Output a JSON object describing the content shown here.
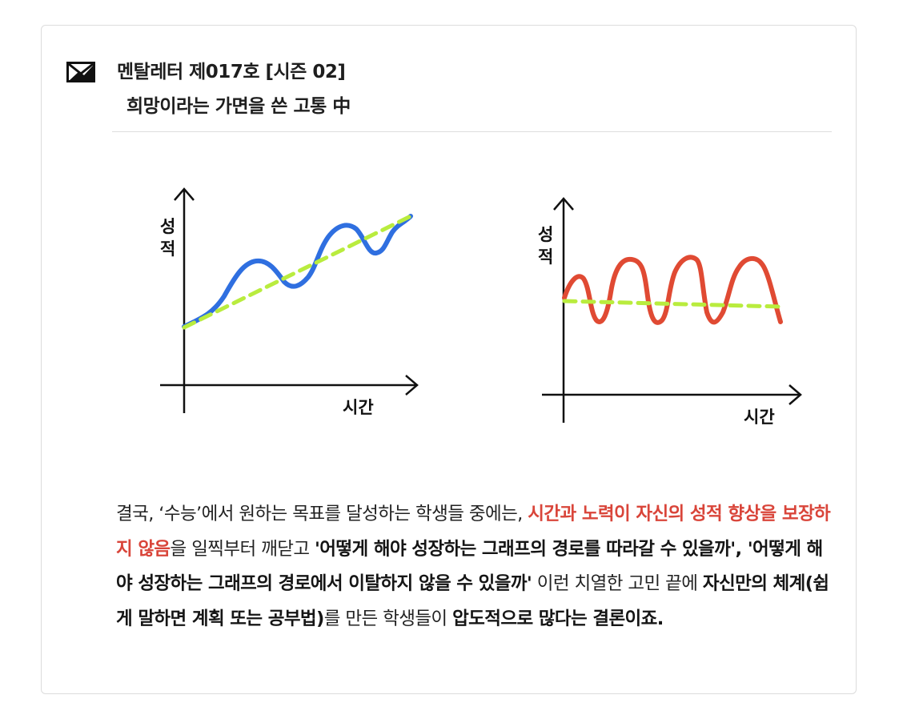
{
  "header": {
    "title_line1": "멘탈레터 제017호 [시즌 02]",
    "title_line2": "희망이라는 가면을 쓴 고통 中"
  },
  "charts": {
    "left": {
      "y_label": "성\n적",
      "x_label": "시간",
      "trend_color": "#b9ec3e",
      "curve_color": "#2f6fe0"
    },
    "right": {
      "y_label": "성\n적",
      "x_label": "시간",
      "trend_color": "#b9ec3e",
      "curve_color": "#e04a33"
    }
  },
  "body": {
    "segments": [
      {
        "text": "결국, ‘수능’에서 원하는 목표를 달성하는 학생들 중에는, ",
        "style": "normal"
      },
      {
        "text": "시간과 노력이 자신의 성적 향상을 보장하지 않음",
        "style": "highlight"
      },
      {
        "text": "을 일찍부터 깨닫고 ",
        "style": "normal"
      },
      {
        "text": "'어떻게 해야 성장하는 그래프의 경로를 따라갈 수 있을까', '어떻게 해야 성장하는 그래프의 경로에서 이탈하지 않을 수 있을까'",
        "style": "bold"
      },
      {
        "text": " 이런 치열한 고민 끝에 ",
        "style": "normal"
      },
      {
        "text": "자신만의 체계(쉽게 말하면 계획 또는 공부법)",
        "style": "bold"
      },
      {
        "text": "를 만든 학생들이 ",
        "style": "normal"
      },
      {
        "text": "압도적으로 많다는 결론이죠.",
        "style": "bold"
      }
    ]
  }
}
